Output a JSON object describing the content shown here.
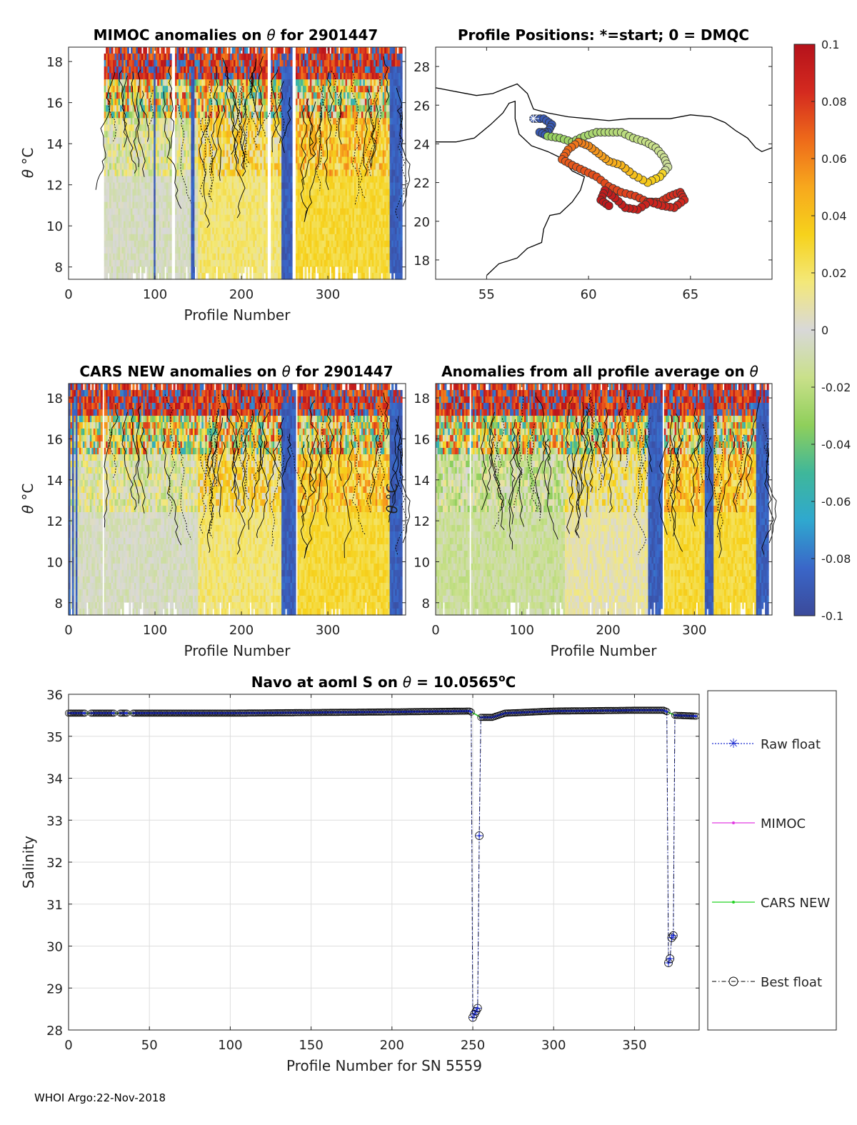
{
  "footer": "WHOI Argo:22-Nov-2018",
  "colors": {
    "stops": [
      "#3b4a9a",
      "#3a66c8",
      "#2fa8cf",
      "#3fb79a",
      "#8fcf5b",
      "#c9e08a",
      "#d8d8d8",
      "#f3e87a",
      "#f6d21c",
      "#f7a81d",
      "#ee6a1a",
      "#d42a1f",
      "#b5121b"
    ],
    "raw": "#1f2fd0",
    "mimoc": "#e23be2",
    "cars": "#25d325",
    "best": "#000000",
    "land": "#ffffff",
    "coast": "#000000"
  },
  "chart_data": [
    {
      "id": "mimoc",
      "type": "heatmap",
      "title_prefix": "MIMOC anomalies on ",
      "title_symbol": "θ",
      "title_suffix": "  for 2901447",
      "xlabel": "Profile Number",
      "ylabel_symbol": "θ",
      "ylabel_rest": " °C",
      "xlim": [
        0,
        390
      ],
      "ylim": [
        7.4,
        18.7
      ],
      "xticks": [
        "0",
        "100",
        "200",
        "300"
      ],
      "xtick_values": [
        0,
        100,
        200,
        300
      ],
      "yticks": [
        "8",
        "10",
        "12",
        "14",
        "16",
        "18"
      ],
      "ytick_values": [
        8,
        10,
        12,
        14,
        16,
        18
      ],
      "data_start_profile": 42,
      "profiles": 385,
      "band_pattern": [
        {
          "from": 42,
          "to": 140,
          "style": "mixed"
        },
        {
          "from": 140,
          "to": 250,
          "style": "warm"
        },
        {
          "from": 250,
          "to": 262,
          "style": "cold"
        },
        {
          "from": 262,
          "to": 370,
          "style": "warm"
        },
        {
          "from": 370,
          "to": 385,
          "style": "cold"
        }
      ]
    },
    {
      "id": "positions",
      "type": "scatter",
      "title": "Profile Positions: *=start; 0 = DMQC",
      "xlim": [
        52.5,
        69
      ],
      "ylim": [
        17,
        29
      ],
      "xticks": [
        "55",
        "60",
        "65"
      ],
      "xtick_values": [
        55,
        60,
        65
      ],
      "yticks": [
        "18",
        "20",
        "22",
        "24",
        "26",
        "28"
      ],
      "ytick_values": [
        18,
        20,
        22,
        24,
        26,
        28
      ],
      "start": {
        "lon": 57.3,
        "lat": 25.3
      },
      "track": [
        [
          57.3,
          25.3
        ],
        [
          57.8,
          25.3
        ],
        [
          58.2,
          25.0
        ],
        [
          58.0,
          24.6
        ],
        [
          57.6,
          24.6
        ],
        [
          58.0,
          24.4
        ],
        [
          58.6,
          24.3
        ],
        [
          59.2,
          24.1
        ],
        [
          59.8,
          24.4
        ],
        [
          60.4,
          24.6
        ],
        [
          61.0,
          24.6
        ],
        [
          61.6,
          24.6
        ],
        [
          62.2,
          24.3
        ],
        [
          62.8,
          24.1
        ],
        [
          63.3,
          23.8
        ],
        [
          63.7,
          23.3
        ],
        [
          63.9,
          22.8
        ],
        [
          63.5,
          22.3
        ],
        [
          62.9,
          22.0
        ],
        [
          62.2,
          22.4
        ],
        [
          61.6,
          22.9
        ],
        [
          61.0,
          23.1
        ],
        [
          60.5,
          23.5
        ],
        [
          60.0,
          23.9
        ],
        [
          59.5,
          24.1
        ],
        [
          59.0,
          23.7
        ],
        [
          58.7,
          23.2
        ],
        [
          59.2,
          22.9
        ],
        [
          59.8,
          22.6
        ],
        [
          60.4,
          22.3
        ],
        [
          61.0,
          21.8
        ],
        [
          61.6,
          21.5
        ],
        [
          62.3,
          21.3
        ],
        [
          62.9,
          21.0
        ],
        [
          63.5,
          21.0
        ],
        [
          64.0,
          21.3
        ],
        [
          64.5,
          21.5
        ],
        [
          64.7,
          21.1
        ],
        [
          64.2,
          20.7
        ],
        [
          63.6,
          20.8
        ],
        [
          63.0,
          21.0
        ],
        [
          62.4,
          20.6
        ],
        [
          61.8,
          20.7
        ],
        [
          61.3,
          21.2
        ],
        [
          60.8,
          21.6
        ],
        [
          60.6,
          21.1
        ],
        [
          61.0,
          20.8
        ]
      ]
    },
    {
      "id": "cars",
      "type": "heatmap",
      "title_prefix": "CARS NEW anomalies on ",
      "title_symbol": "θ",
      "title_suffix": " for 2901447",
      "xlabel": "Profile Number",
      "ylabel_symbol": "θ",
      "ylabel_rest": " °C",
      "xlim": [
        0,
        390
      ],
      "ylim": [
        7.4,
        18.7
      ],
      "xticks": [
        "0",
        "100",
        "200",
        "300"
      ],
      "xtick_values": [
        0,
        100,
        200,
        300
      ],
      "yticks": [
        "8",
        "10",
        "12",
        "14",
        "16",
        "18"
      ],
      "ytick_values": [
        8,
        10,
        12,
        14,
        16,
        18
      ],
      "data_start_profile": 0,
      "profiles": 385
    },
    {
      "id": "avg",
      "type": "heatmap",
      "title_prefix": "Anomalies from all profile average on ",
      "title_symbol": "θ",
      "title_suffix": "",
      "xlabel": "Profile Number",
      "ylabel_symbol": "θ",
      "ylabel_rest": " °C",
      "xlim": [
        0,
        390
      ],
      "ylim": [
        7.4,
        18.7
      ],
      "xticks": [
        "0",
        "100",
        "200",
        "300"
      ],
      "xtick_values": [
        0,
        100,
        200,
        300
      ],
      "yticks": [
        "8",
        "10",
        "12",
        "14",
        "16",
        "18"
      ],
      "ytick_values": [
        8,
        10,
        12,
        14,
        16,
        18
      ],
      "data_start_profile": 0,
      "profiles": 385
    },
    {
      "id": "colorbar",
      "type": "colorbar",
      "range": [
        -0.1,
        0.1
      ],
      "ticks": [
        "0.1",
        "0.08",
        "0.06",
        "0.04",
        "0.02",
        "0",
        "-0.02",
        "-0.04",
        "-0.06",
        "-0.08",
        "-0.1"
      ],
      "tick_values": [
        0.1,
        0.08,
        0.06,
        0.04,
        0.02,
        0,
        -0.02,
        -0.04,
        -0.06,
        -0.08,
        -0.1
      ]
    },
    {
      "id": "salinity",
      "type": "line",
      "title_prefix": "Navo at aoml S on ",
      "title_symbol": "θ",
      "title_mid": " = 10.0565",
      "title_sup": "o",
      "title_unit": "C",
      "xlabel": "Profile Number for SN 5559",
      "ylabel": "Salinity",
      "xlim": [
        0,
        390
      ],
      "ylim": [
        28,
        36
      ],
      "xticks": [
        "0",
        "50",
        "100",
        "150",
        "200",
        "250",
        "300",
        "350"
      ],
      "xtick_values": [
        0,
        50,
        100,
        150,
        200,
        250,
        300,
        350
      ],
      "yticks": [
        "28",
        "29",
        "30",
        "31",
        "32",
        "33",
        "34",
        "35",
        "36"
      ],
      "ytick_values": [
        28,
        29,
        30,
        31,
        32,
        33,
        34,
        35,
        36
      ],
      "legend": [
        "Raw float",
        "MIMOC",
        "CARS NEW",
        "Best float"
      ],
      "baseline": [
        [
          0,
          35.55
        ],
        [
          100,
          35.55
        ],
        [
          200,
          35.58
        ],
        [
          248,
          35.6
        ],
        [
          255,
          35.45
        ],
        [
          262,
          35.45
        ],
        [
          270,
          35.55
        ],
        [
          300,
          35.6
        ],
        [
          350,
          35.62
        ],
        [
          368,
          35.62
        ],
        [
          375,
          35.5
        ],
        [
          388,
          35.48
        ]
      ],
      "outliers": [
        [
          250,
          28.3
        ],
        [
          251,
          28.38
        ],
        [
          252,
          28.45
        ],
        [
          253,
          28.52
        ],
        [
          254,
          32.63
        ],
        [
          371,
          29.6
        ],
        [
          372,
          29.7
        ],
        [
          373,
          30.2
        ],
        [
          374,
          30.25
        ]
      ]
    }
  ]
}
